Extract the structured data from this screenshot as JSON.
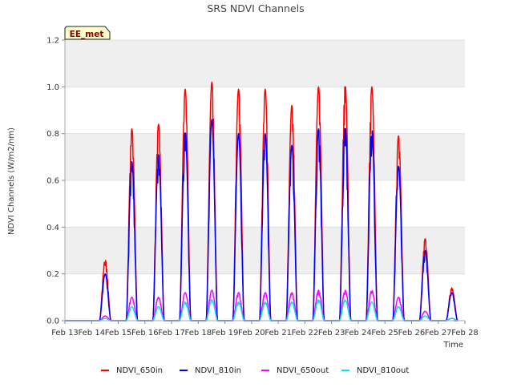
{
  "chart_data": {
    "type": "line",
    "title": "SRS NDVI Channels",
    "xlabel": "Time",
    "ylabel": "NDVI Channels (W/m2/nm)",
    "badge": "EE_met",
    "xlim": [
      13,
      28
    ],
    "ylim": [
      0.0,
      1.2
    ],
    "xticks": [
      13,
      14,
      15,
      16,
      17,
      18,
      19,
      20,
      21,
      22,
      23,
      24,
      25,
      26,
      27,
      28
    ],
    "xtick_labels": [
      "Feb 13",
      "Feb 14",
      "Feb 15",
      "Feb 16",
      "Feb 17",
      "Feb 18",
      "Feb 19",
      "Feb 20",
      "Feb 21",
      "Feb 22",
      "Feb 23",
      "Feb 24",
      "Feb 25",
      "Feb 26",
      "Feb 27",
      "Feb 28"
    ],
    "yticks": [
      0.0,
      0.2,
      0.4,
      0.6,
      0.8,
      1.0,
      1.2
    ],
    "ytick_labels": [
      "0.0",
      "0.2",
      "0.4",
      "0.6",
      "0.8",
      "1.0",
      "1.2"
    ],
    "grid": true,
    "legend_position": "bottom",
    "daylight_window": [
      0.3,
      0.72
    ],
    "series": [
      {
        "name": "NDVI_650in",
        "color": "#ff0000",
        "daily_peaks": [
          {
            "day": 13,
            "peak": 0.0
          },
          {
            "day": 14,
            "peak": 0.26
          },
          {
            "day": 15,
            "peak": 0.82
          },
          {
            "day": 16,
            "peak": 0.84
          },
          {
            "day": 17,
            "peak": 0.99
          },
          {
            "day": 18,
            "peak": 1.02
          },
          {
            "day": 19,
            "peak": 0.99
          },
          {
            "day": 20,
            "peak": 0.99
          },
          {
            "day": 21,
            "peak": 0.92
          },
          {
            "day": 22,
            "peak": 1.0
          },
          {
            "day": 23,
            "peak": 1.01
          },
          {
            "day": 24,
            "peak": 1.0
          },
          {
            "day": 25,
            "peak": 0.79
          },
          {
            "day": 26,
            "peak": 0.35
          },
          {
            "day": 27,
            "peak": 0.14
          }
        ]
      },
      {
        "name": "NDVI_810in",
        "color": "#0000ff",
        "daily_peaks": [
          {
            "day": 13,
            "peak": 0.0
          },
          {
            "day": 14,
            "peak": 0.2
          },
          {
            "day": 15,
            "peak": 0.68
          },
          {
            "day": 16,
            "peak": 0.71
          },
          {
            "day": 17,
            "peak": 0.81
          },
          {
            "day": 18,
            "peak": 0.86
          },
          {
            "day": 19,
            "peak": 0.8
          },
          {
            "day": 20,
            "peak": 0.8
          },
          {
            "day": 21,
            "peak": 0.75
          },
          {
            "day": 22,
            "peak": 0.82
          },
          {
            "day": 23,
            "peak": 0.83
          },
          {
            "day": 24,
            "peak": 0.82
          },
          {
            "day": 25,
            "peak": 0.66
          },
          {
            "day": 26,
            "peak": 0.3
          },
          {
            "day": 27,
            "peak": 0.12
          }
        ]
      },
      {
        "name": "NDVI_650out",
        "color": "#ff00ff",
        "daily_peaks": [
          {
            "day": 13,
            "peak": 0.0
          },
          {
            "day": 14,
            "peak": 0.02
          },
          {
            "day": 15,
            "peak": 0.1
          },
          {
            "day": 16,
            "peak": 0.1
          },
          {
            "day": 17,
            "peak": 0.12
          },
          {
            "day": 18,
            "peak": 0.13
          },
          {
            "day": 19,
            "peak": 0.12
          },
          {
            "day": 20,
            "peak": 0.12
          },
          {
            "day": 21,
            "peak": 0.12
          },
          {
            "day": 22,
            "peak": 0.13
          },
          {
            "day": 23,
            "peak": 0.13
          },
          {
            "day": 24,
            "peak": 0.13
          },
          {
            "day": 25,
            "peak": 0.1
          },
          {
            "day": 26,
            "peak": 0.04
          },
          {
            "day": 27,
            "peak": 0.01
          }
        ]
      },
      {
        "name": "NDVI_810out",
        "color": "#00e5ee",
        "daily_peaks": [
          {
            "day": 13,
            "peak": 0.0
          },
          {
            "day": 14,
            "peak": 0.01
          },
          {
            "day": 15,
            "peak": 0.06
          },
          {
            "day": 16,
            "peak": 0.06
          },
          {
            "day": 17,
            "peak": 0.08
          },
          {
            "day": 18,
            "peak": 0.09
          },
          {
            "day": 19,
            "peak": 0.08
          },
          {
            "day": 20,
            "peak": 0.08
          },
          {
            "day": 21,
            "peak": 0.08
          },
          {
            "day": 22,
            "peak": 0.09
          },
          {
            "day": 23,
            "peak": 0.09
          },
          {
            "day": 24,
            "peak": 0.08
          },
          {
            "day": 25,
            "peak": 0.06
          },
          {
            "day": 26,
            "peak": 0.02
          },
          {
            "day": 27,
            "peak": 0.01
          }
        ]
      }
    ]
  }
}
